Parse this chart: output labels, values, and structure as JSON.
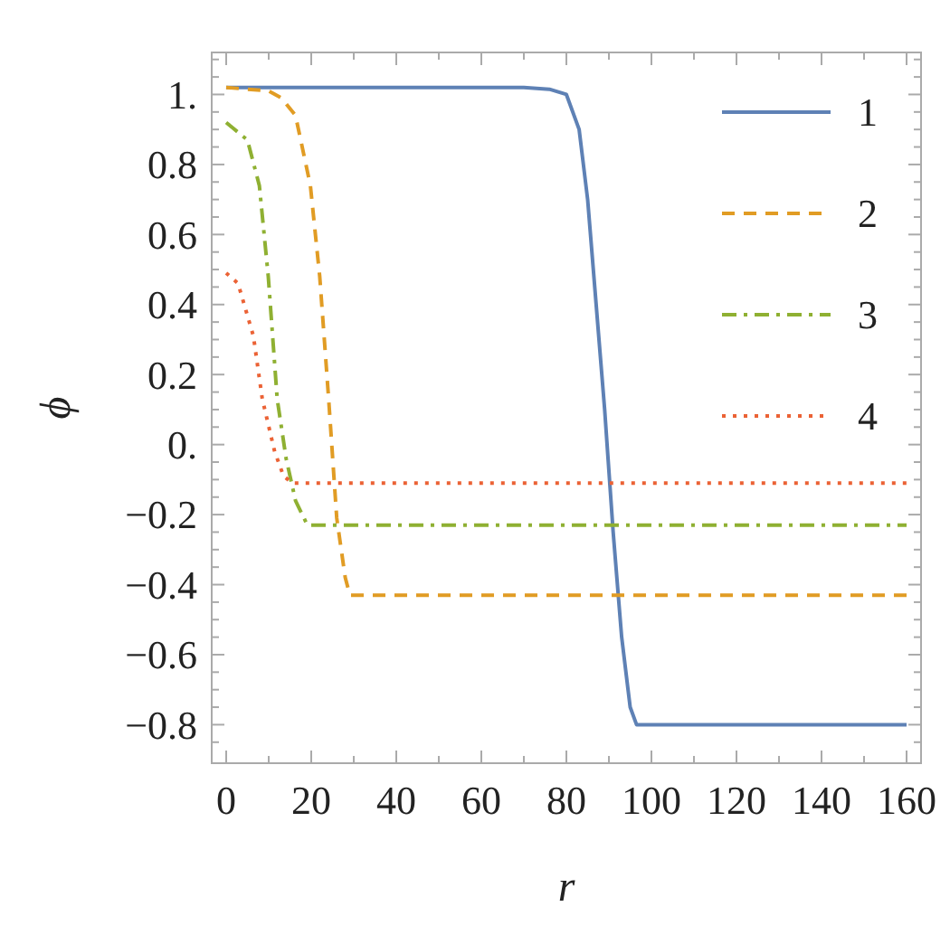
{
  "chart_data": {
    "type": "line",
    "xlabel": "r",
    "ylabel": "ϕ",
    "xlim": [
      -3.4,
      163.4
    ],
    "ylim": [
      -0.91,
      1.12
    ],
    "xticks": [
      0,
      {
        "value": 10,
        "label": null
      },
      20,
      {
        "value": 30,
        "label": null
      },
      40,
      {
        "value": 50,
        "label": null
      },
      60,
      {
        "value": 70,
        "label": null
      },
      80,
      {
        "value": 90,
        "label": null
      },
      100,
      {
        "value": 110,
        "label": null
      },
      120,
      {
        "value": 130,
        "label": null
      },
      140,
      {
        "value": 150,
        "label": null
      },
      160
    ],
    "yticks": [
      {
        "value": -0.85,
        "label": null
      },
      {
        "value": -0.8,
        "label": "−0.8"
      },
      {
        "value": -0.75,
        "label": null
      },
      {
        "value": -0.7,
        "label": null
      },
      {
        "value": -0.65,
        "label": null
      },
      {
        "value": -0.6,
        "label": "−0.6"
      },
      {
        "value": -0.55,
        "label": null
      },
      {
        "value": -0.5,
        "label": null
      },
      {
        "value": -0.45,
        "label": null
      },
      {
        "value": -0.4,
        "label": "−0.4"
      },
      {
        "value": -0.35,
        "label": null
      },
      {
        "value": -0.3,
        "label": null
      },
      {
        "value": -0.25,
        "label": null
      },
      {
        "value": -0.2,
        "label": "−0.2"
      },
      {
        "value": -0.15,
        "label": null
      },
      {
        "value": -0.1,
        "label": null
      },
      {
        "value": -0.05,
        "label": null
      },
      {
        "value": 0,
        "label": "0."
      },
      {
        "value": 0.05,
        "label": null
      },
      {
        "value": 0.1,
        "label": null
      },
      {
        "value": 0.15,
        "label": null
      },
      {
        "value": 0.2,
        "label": "0.2"
      },
      {
        "value": 0.25,
        "label": null
      },
      {
        "value": 0.3,
        "label": null
      },
      {
        "value": 0.35,
        "label": null
      },
      {
        "value": 0.4,
        "label": "0.4"
      },
      {
        "value": 0.45,
        "label": null
      },
      {
        "value": 0.5,
        "label": null
      },
      {
        "value": 0.55,
        "label": null
      },
      {
        "value": 0.6,
        "label": "0.6"
      },
      {
        "value": 0.65,
        "label": null
      },
      {
        "value": 0.7,
        "label": null
      },
      {
        "value": 0.75,
        "label": null
      },
      {
        "value": 0.8,
        "label": "0.8"
      },
      {
        "value": 0.85,
        "label": null
      },
      {
        "value": 0.9,
        "label": null
      },
      {
        "value": 0.95,
        "label": null
      },
      {
        "value": 1,
        "label": "1."
      },
      {
        "value": 1.05,
        "label": null
      },
      {
        "value": 1.1,
        "label": null
      }
    ],
    "grid": false,
    "legend": "top right",
    "marker": "none",
    "series": [
      {
        "name": "1",
        "color": "#5e81b5",
        "line_style": "solid",
        "x": [
          0,
          70,
          76,
          80,
          83,
          85,
          87,
          89,
          91,
          93,
          95,
          96.5,
          160
        ],
        "values": [
          1.02,
          1.02,
          1.015,
          1.0,
          0.9,
          0.7,
          0.4,
          0.1,
          -0.25,
          -0.55,
          -0.75,
          -0.8,
          -0.8
        ]
      },
      {
        "name": "2",
        "color": "#e19c24",
        "line_style": "dashed",
        "x": [
          0,
          10,
          13,
          16.3,
          19.8,
          22,
          24.1,
          26,
          28,
          29.1,
          160
        ],
        "values": [
          1.02,
          1.01,
          0.99,
          0.94,
          0.74,
          0.48,
          0.13,
          -0.21,
          -0.38,
          -0.43,
          -0.43
        ]
      },
      {
        "name": "3",
        "color": "#8fb032",
        "line_style": "dashdot",
        "x": [
          0,
          5,
          7.8,
          9.9,
          12,
          14.1,
          16.3,
          19.1,
          160
        ],
        "values": [
          0.92,
          0.87,
          0.74,
          0.48,
          0.13,
          -0.04,
          -0.16,
          -0.23,
          -0.23
        ]
      },
      {
        "name": "4",
        "color": "#eb6235",
        "line_style": "dotted",
        "x": [
          0,
          2.8,
          6.4,
          8.5,
          11.4,
          13.5,
          15.6,
          160
        ],
        "values": [
          0.49,
          0.46,
          0.31,
          0.13,
          -0.02,
          -0.09,
          -0.11,
          -0.11
        ]
      }
    ]
  }
}
